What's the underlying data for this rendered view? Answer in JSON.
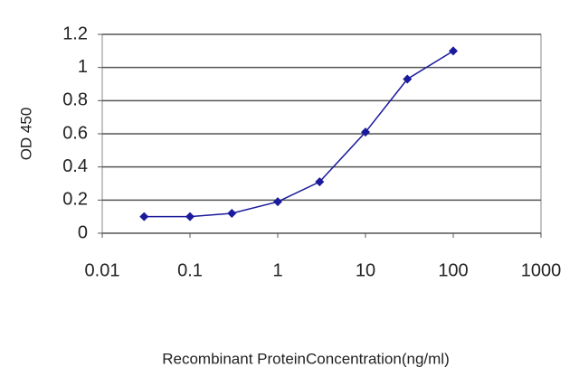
{
  "chart_data": {
    "type": "line",
    "x_label": "Recombinant ProteinConcentration(ng/ml)",
    "y_label": "OD 450",
    "x": [
      0.03,
      0.1,
      0.3,
      1,
      3,
      10,
      30,
      100
    ],
    "series": [
      {
        "color": "#1a1a9c",
        "values": [
          0.1,
          0.1,
          0.12,
          0.19,
          0.31,
          0.61,
          0.93,
          1.1
        ]
      }
    ],
    "xscale": "log",
    "xlim": [
      0.01,
      1000
    ],
    "xticks": [
      0.01,
      0.1,
      1,
      10,
      100,
      1000
    ],
    "ylim": [
      0,
      1.2
    ],
    "yticks": [
      0,
      0.2,
      0.4,
      0.6,
      0.8,
      1,
      1.2
    ],
    "grid": true
  }
}
